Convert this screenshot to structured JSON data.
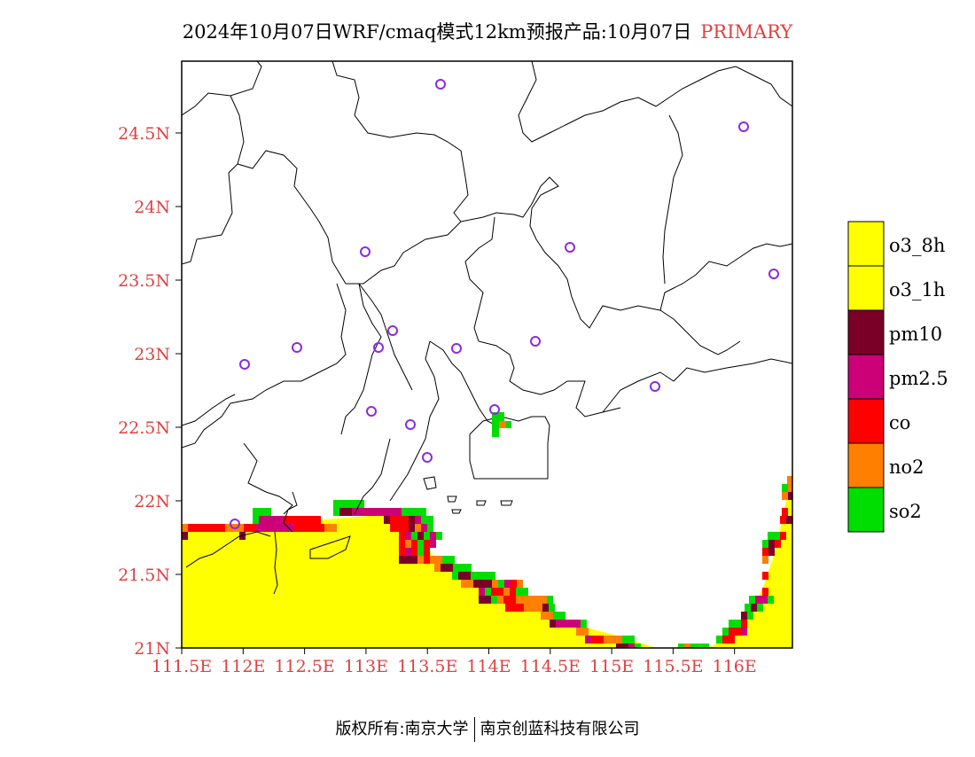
{
  "title": {
    "main": "2024年10月07日WRF/cmaq模式12km预报产品:10月07日",
    "tag": "PRIMARY"
  },
  "map": {
    "region_label_color": "#e04040",
    "x_ticks": [
      "111.5E",
      "112E",
      "112.5E",
      "113E",
      "113.5E",
      "114E",
      "114.5E",
      "115E",
      "115.5E",
      "116E"
    ],
    "y_ticks": [
      "21N",
      "21.5N",
      "22N",
      "22.5N",
      "23N",
      "23.5N",
      "24N",
      "24.5N"
    ],
    "station_marker": "circle",
    "station_color": "#8a2be2"
  },
  "legend": {
    "items": [
      {
        "label": "o3_8h",
        "color": "#ffff00"
      },
      {
        "label": "o3_1h",
        "color": "#ffff00"
      },
      {
        "label": "pm10",
        "color": "#7a0028"
      },
      {
        "label": "pm2.5",
        "color": "#cc0077"
      },
      {
        "label": "co",
        "color": "#ff0000"
      },
      {
        "label": "no2",
        "color": "#ff7f00"
      },
      {
        "label": "so2",
        "color": "#00dd00"
      }
    ]
  },
  "footer": {
    "left": "版权所有:南京大学",
    "right": "南京创蓝科技有限公司"
  }
}
